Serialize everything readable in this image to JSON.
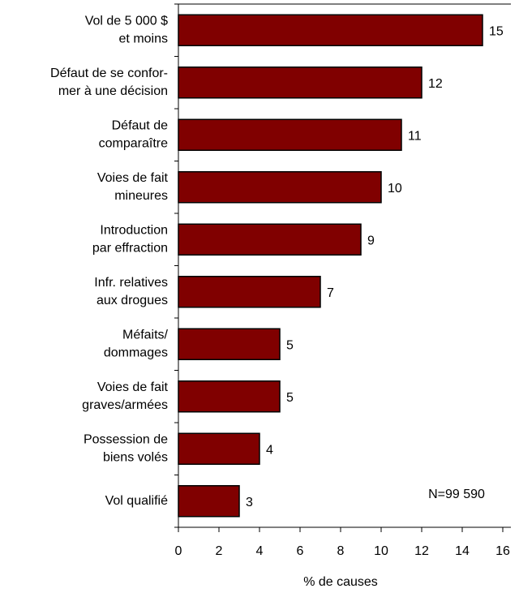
{
  "chart_data": {
    "type": "barh",
    "categories": [
      [
        "Vol de 5 000 $",
        "et moins"
      ],
      [
        "Défaut de se confor-",
        "mer à une décision"
      ],
      [
        "Défaut de",
        "comparaître"
      ],
      [
        "Voies de fait",
        "mineures"
      ],
      [
        "Introduction",
        "par effraction"
      ],
      [
        "Infr. relatives",
        "aux drogues"
      ],
      [
        "Méfaits/",
        "dommages"
      ],
      [
        "Voies de fait",
        "graves/armées"
      ],
      [
        "Possession de",
        "biens volés"
      ],
      [
        "Vol qualifié"
      ]
    ],
    "values": [
      15,
      12,
      11,
      10,
      9,
      7,
      5,
      5,
      4,
      3
    ],
    "color": "#800000",
    "xlim": [
      0,
      16
    ],
    "xticks": [
      0,
      2,
      4,
      6,
      8,
      10,
      12,
      14,
      16
    ],
    "xlabel": "% de causes",
    "annotation": "N=99 590"
  }
}
